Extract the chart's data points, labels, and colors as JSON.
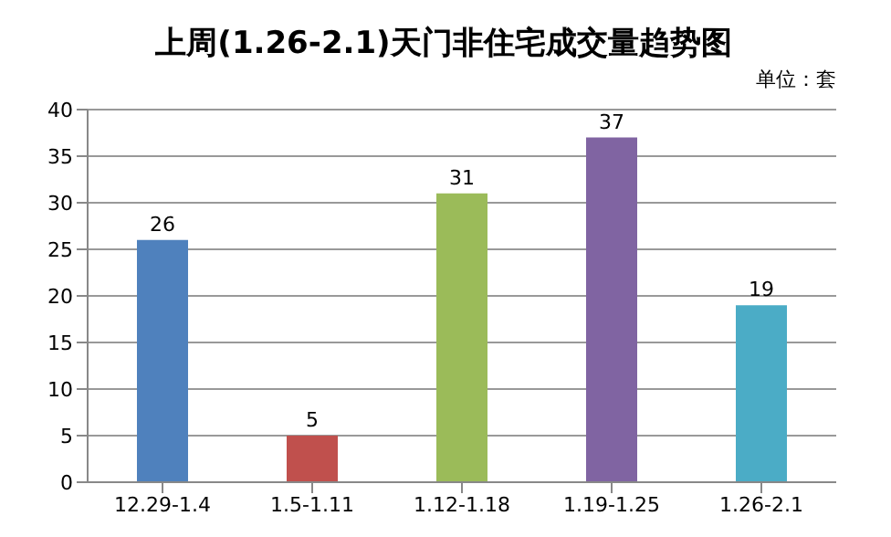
{
  "chart_data": {
    "type": "bar",
    "title": "上周(1.26-2.1)天门非住宅成交量趋势图",
    "annotations": [
      "单位：套"
    ],
    "categories": [
      "12.29-1.4",
      "1.5-1.11",
      "1.12-1.18",
      "1.19-1.25",
      "1.26-2.1"
    ],
    "values": [
      26,
      5,
      31,
      37,
      19
    ],
    "colors": [
      "#4f81bd",
      "#c0504d",
      "#9bbb59",
      "#8064a2",
      "#4bacc6"
    ],
    "ylim": [
      0,
      40
    ],
    "yticks": [
      0,
      5,
      10,
      15,
      20,
      25,
      30,
      35,
      40
    ],
    "grid": "y",
    "data_labels": true
  }
}
